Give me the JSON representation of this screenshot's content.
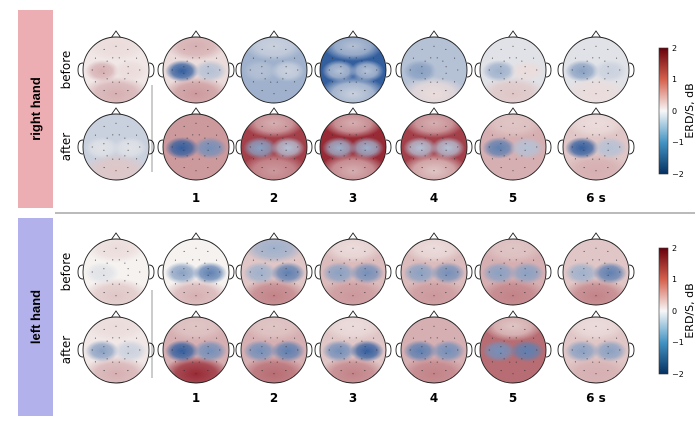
{
  "colors": {
    "right_band": "#ecaeb3",
    "left_band": "#b2b1ec",
    "blue": "#1f4f96",
    "red": "#8e1420",
    "neutral": "#f5f2f0"
  },
  "colorbar": {
    "label": "ERD/S, dB",
    "ticks": [
      "2",
      "1",
      "0",
      "−1",
      "−2"
    ]
  },
  "time_labels": [
    "1",
    "2",
    "3",
    "4",
    "5",
    "6 s"
  ],
  "panels": [
    {
      "label": "right hand",
      "rows": [
        {
          "label": "before",
          "maps": [
            {
              "bias": 0.05,
              "left": 0.3,
              "right": 0.1,
              "back": 0.3,
              "front": 0.1
            },
            {
              "bias": 0.1,
              "left": -0.9,
              "right": -0.3,
              "back": 0.4,
              "front": 0.3
            },
            {
              "bias": -0.4,
              "left": -0.3,
              "right": -0.2,
              "back": 0.0,
              "front": -0.2
            },
            {
              "bias": -0.9,
              "left": -0.3,
              "right": -0.3,
              "back": -0.2,
              "front": -0.3
            },
            {
              "bias": -0.3,
              "left": -0.5,
              "right": -0.3,
              "back": 0.1,
              "front": 0.0
            },
            {
              "bias": -0.1,
              "left": -0.4,
              "right": 0.1,
              "back": 0.2,
              "front": 0.0
            },
            {
              "bias": -0.1,
              "left": -0.5,
              "right": -0.2,
              "back": 0.1,
              "front": 0.0
            }
          ]
        },
        {
          "label": "after",
          "maps": [
            {
              "bias": -0.2,
              "left": -0.1,
              "right": -0.1,
              "back": 0.2,
              "front": 0.0
            },
            {
              "bias": 0.4,
              "left": -0.9,
              "right": -0.6,
              "back": 0.4,
              "front": 0.4
            },
            {
              "bias": 0.8,
              "left": -0.5,
              "right": -0.3,
              "back": 0.4,
              "front": 0.3
            },
            {
              "bias": 0.9,
              "left": -0.4,
              "right": -0.4,
              "back": 0.3,
              "front": 0.3
            },
            {
              "bias": 0.8,
              "left": -0.3,
              "right": -0.3,
              "back": 0.2,
              "front": 0.3
            },
            {
              "bias": 0.3,
              "left": -0.7,
              "right": -0.3,
              "back": 0.3,
              "front": 0.2
            },
            {
              "bias": 0.2,
              "left": -0.9,
              "right": -0.3,
              "back": 0.3,
              "front": 0.1
            }
          ]
        }
      ]
    },
    {
      "label": "left hand",
      "rows": [
        {
          "label": "before",
          "maps": [
            {
              "bias": 0.0,
              "left": -0.1,
              "right": 0.0,
              "back": 0.2,
              "front": 0.1
            },
            {
              "bias": 0.0,
              "left": -0.5,
              "right": -0.7,
              "back": 0.3,
              "front": 0.0
            },
            {
              "bias": 0.2,
              "left": -0.4,
              "right": -0.7,
              "back": 0.5,
              "front": -0.4
            },
            {
              "bias": 0.25,
              "left": -0.5,
              "right": -0.6,
              "back": 0.4,
              "front": 0.1
            },
            {
              "bias": 0.25,
              "left": -0.5,
              "right": -0.6,
              "back": 0.4,
              "front": 0.1
            },
            {
              "bias": 0.3,
              "left": -0.5,
              "right": -0.5,
              "back": 0.5,
              "front": 0.2
            },
            {
              "bias": 0.2,
              "left": -0.4,
              "right": -0.7,
              "back": 0.5,
              "front": 0.0
            }
          ]
        },
        {
          "label": "after",
          "maps": [
            {
              "bias": 0.05,
              "left": -0.5,
              "right": -0.2,
              "back": 0.3,
              "front": 0.1
            },
            {
              "bias": 0.3,
              "left": -0.9,
              "right": -0.6,
              "back": 0.9,
              "front": 0.2
            },
            {
              "bias": 0.3,
              "left": -0.6,
              "right": -0.7,
              "back": 0.6,
              "front": 0.2
            },
            {
              "bias": 0.2,
              "left": -0.6,
              "right": -0.9,
              "back": 0.5,
              "front": 0.1
            },
            {
              "bias": 0.3,
              "left": -0.7,
              "right": -0.6,
              "back": 0.5,
              "front": 0.3
            },
            {
              "bias": 0.6,
              "left": -0.6,
              "right": -0.7,
              "back": 0.6,
              "front": 0.2
            },
            {
              "bias": 0.2,
              "left": -0.5,
              "right": -0.5,
              "back": 0.3,
              "front": 0.1
            }
          ]
        }
      ]
    }
  ]
}
